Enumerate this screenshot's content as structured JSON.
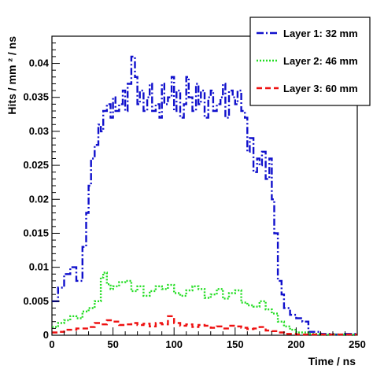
{
  "chart_data": {
    "type": "line",
    "xlabel": "Time / ns",
    "ylabel": "Hits / mm ² / ns",
    "xlim": [
      0,
      250
    ],
    "ylim": [
      0,
      0.044
    ],
    "x_ticks": [
      0,
      50,
      100,
      150,
      200,
      250
    ],
    "y_ticks": [
      0,
      0.005,
      0.01,
      0.015,
      0.02,
      0.025,
      0.03,
      0.035,
      0.04
    ],
    "x_tick_labels": [
      "0",
      "50",
      "100",
      "150",
      "200",
      "250"
    ],
    "y_tick_labels": [
      "0",
      "0.005",
      "0.01",
      "0.015",
      "0.02",
      "0.025",
      "0.03",
      "0.035",
      "0.04"
    ],
    "legend_position": "top-right",
    "series": [
      {
        "name": "Layer 1: 32 mm",
        "color": "#1010cc",
        "style": "dash-dot",
        "x": [
          0,
          5,
          10,
          15,
          20,
          25,
          28,
          30,
          32,
          35,
          38,
          40,
          42,
          45,
          48,
          50,
          52,
          55,
          58,
          60,
          62,
          65,
          68,
          70,
          72,
          75,
          78,
          80,
          82,
          85,
          88,
          90,
          92,
          95,
          98,
          100,
          102,
          105,
          108,
          110,
          112,
          115,
          118,
          120,
          122,
          125,
          128,
          130,
          132,
          135,
          138,
          140,
          142,
          145,
          148,
          150,
          152,
          155,
          158,
          160,
          162,
          165,
          168,
          170,
          172,
          175,
          178,
          180,
          182,
          185,
          188,
          190,
          195,
          200,
          205,
          210,
          220,
          230,
          240,
          250
        ],
        "y": [
          0.005,
          0.007,
          0.009,
          0.01,
          0.008,
          0.013,
          0.018,
          0.022,
          0.026,
          0.028,
          0.031,
          0.03,
          0.033,
          0.034,
          0.032,
          0.035,
          0.033,
          0.034,
          0.036,
          0.033,
          0.037,
          0.041,
          0.038,
          0.034,
          0.036,
          0.033,
          0.035,
          0.037,
          0.033,
          0.034,
          0.032,
          0.037,
          0.034,
          0.035,
          0.038,
          0.033,
          0.036,
          0.032,
          0.034,
          0.038,
          0.035,
          0.033,
          0.037,
          0.034,
          0.036,
          0.032,
          0.035,
          0.036,
          0.033,
          0.034,
          0.035,
          0.037,
          0.032,
          0.036,
          0.035,
          0.034,
          0.036,
          0.033,
          0.032,
          0.027,
          0.029,
          0.024,
          0.026,
          0.025,
          0.027,
          0.023,
          0.026,
          0.02,
          0.015,
          0.008,
          0.006,
          0.004,
          0.003,
          0.0025,
          0.002,
          0.0005,
          0.0002,
          0.0001,
          0.0002,
          0.0001
        ]
      },
      {
        "name": "Layer 2: 46 mm",
        "color": "#22dd22",
        "style": "dotted",
        "x": [
          0,
          5,
          10,
          15,
          20,
          25,
          30,
          35,
          40,
          42,
          45,
          48,
          50,
          55,
          60,
          65,
          70,
          75,
          80,
          85,
          90,
          95,
          100,
          105,
          110,
          115,
          120,
          125,
          130,
          135,
          140,
          145,
          150,
          155,
          160,
          165,
          170,
          175,
          180,
          185,
          190,
          195,
          200,
          210,
          220,
          230,
          240,
          250
        ],
        "y": [
          0.0012,
          0.0018,
          0.0022,
          0.0028,
          0.0025,
          0.0035,
          0.004,
          0.005,
          0.0085,
          0.0092,
          0.0075,
          0.0068,
          0.0072,
          0.0078,
          0.008,
          0.0065,
          0.0072,
          0.0058,
          0.0065,
          0.0072,
          0.0068,
          0.0074,
          0.0062,
          0.0058,
          0.0066,
          0.0072,
          0.0068,
          0.0055,
          0.006,
          0.0068,
          0.0054,
          0.0062,
          0.0066,
          0.0048,
          0.0044,
          0.0042,
          0.005,
          0.0038,
          0.0032,
          0.002,
          0.0013,
          0.0008,
          0.0004,
          0.0002,
          0.0001,
          0.0001,
          0.0001,
          0.0001
        ]
      },
      {
        "name": "Layer 3: 60 mm",
        "color": "#ee1111",
        "style": "dashed",
        "x": [
          0,
          5,
          10,
          15,
          20,
          25,
          30,
          35,
          40,
          45,
          50,
          55,
          60,
          65,
          70,
          75,
          80,
          85,
          90,
          95,
          100,
          105,
          110,
          115,
          120,
          125,
          130,
          135,
          140,
          145,
          150,
          155,
          160,
          165,
          170,
          175,
          180,
          185,
          190,
          200,
          210,
          220,
          230,
          240,
          250
        ],
        "y": [
          0.0004,
          0.0005,
          0.0008,
          0.0008,
          0.001,
          0.001,
          0.0012,
          0.0018,
          0.0016,
          0.0022,
          0.002,
          0.0015,
          0.0016,
          0.0018,
          0.0015,
          0.0017,
          0.0013,
          0.0018,
          0.0016,
          0.0028,
          0.0018,
          0.0014,
          0.0016,
          0.0012,
          0.0015,
          0.0014,
          0.0011,
          0.0013,
          0.001,
          0.0014,
          0.0013,
          0.0011,
          0.0009,
          0.001,
          0.0012,
          0.0007,
          0.0006,
          0.0004,
          0.0002,
          0.0001,
          0.0001,
          0.0001,
          0.0001,
          0.0001,
          0.0001
        ]
      }
    ]
  }
}
